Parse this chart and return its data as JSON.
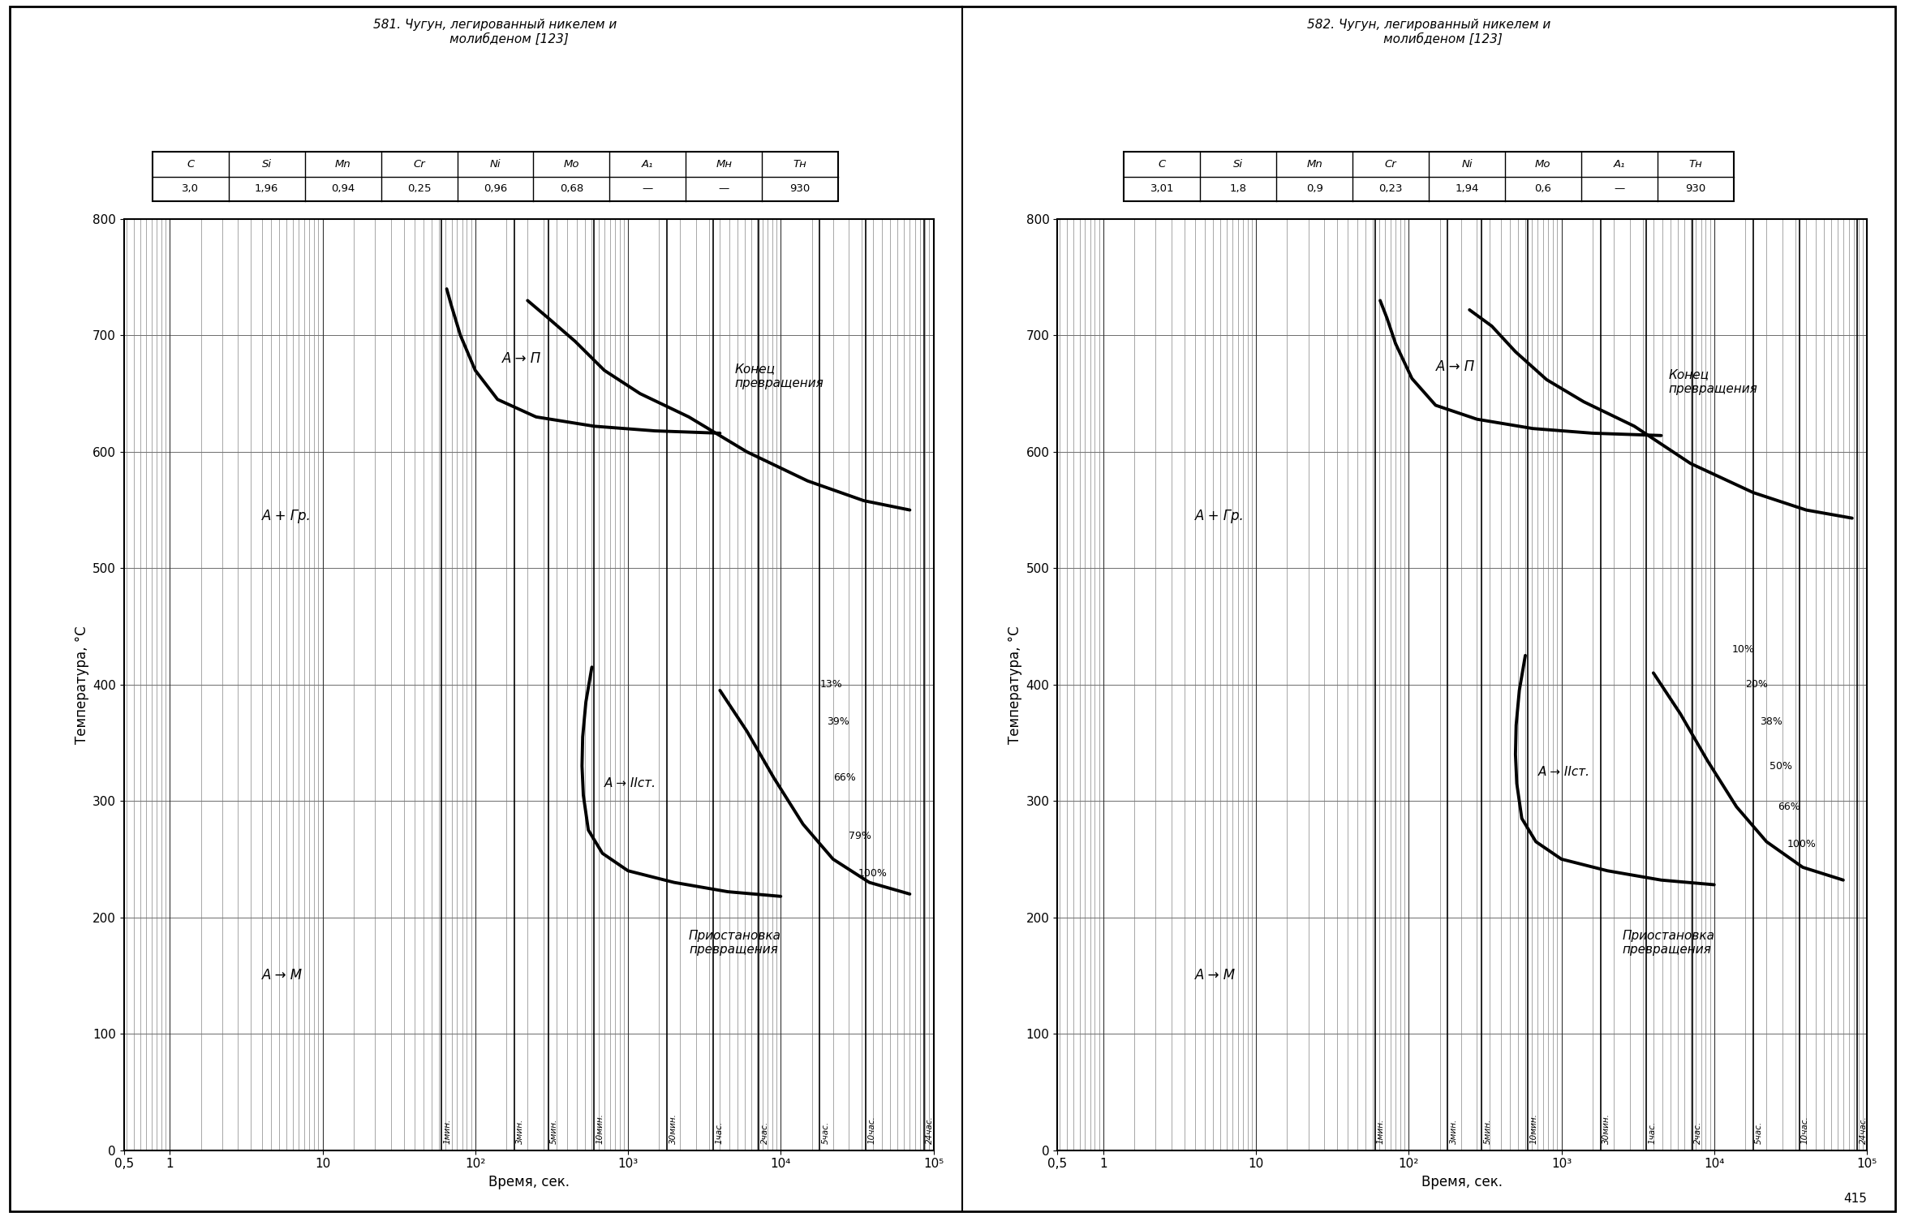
{
  "title1": "581. Чугун, легиробанный никелем и\n       молибденом [123]",
  "title2": "582. Чугун, легиробанный никелем и\n       молибденом [123]",
  "table1_headers": [
    "C",
    "Si",
    "Mn",
    "Cr",
    "Ni",
    "Mo",
    "A₁",
    "Mн",
    "Tн"
  ],
  "table1_values": [
    "3,0",
    "1,96",
    "0,94",
    "0,25",
    "0,96",
    "0,68",
    "—",
    "—",
    "930"
  ],
  "table2_headers": [
    "C",
    "Si",
    "Mn",
    "Cr",
    "Ni",
    "Mo",
    "A₁",
    "Tн"
  ],
  "table2_values": [
    "3,01",
    "1,8",
    "0,9",
    "0,23",
    "1,94",
    "0,6",
    "—",
    "930"
  ],
  "xlabel": "Время, сек.",
  "ylabel": "Температура, °C",
  "time_markers": [
    [
      60,
      "1мин."
    ],
    [
      180,
      "3мин."
    ],
    [
      300,
      "5мин."
    ],
    [
      600,
      "10мин."
    ],
    [
      1800,
      "30мин."
    ],
    [
      3600,
      "1час."
    ],
    [
      7200,
      "2час."
    ],
    [
      18000,
      "5час."
    ],
    [
      36000,
      "10час."
    ],
    [
      86400,
      "24час."
    ]
  ],
  "diag1": {
    "pearl_start_x": [
      65,
      70,
      80,
      100,
      140,
      250,
      600,
      1500,
      4000
    ],
    "pearl_start_y": [
      740,
      725,
      700,
      670,
      645,
      630,
      622,
      618,
      616
    ],
    "pearl_end_x": [
      220,
      300,
      450,
      700,
      1200,
      2500,
      6000,
      15000,
      35000,
      70000
    ],
    "pearl_end_y": [
      730,
      715,
      695,
      670,
      650,
      630,
      600,
      575,
      558,
      550
    ],
    "bain_start_x": [
      580,
      530,
      505,
      500,
      510,
      550,
      680,
      1000,
      2000,
      4500,
      10000
    ],
    "bain_start_y": [
      415,
      385,
      355,
      330,
      305,
      275,
      255,
      240,
      230,
      222,
      218
    ],
    "bain_end_x": [
      4000,
      6000,
      9000,
      14000,
      22000,
      38000,
      70000
    ],
    "bain_end_y": [
      395,
      360,
      320,
      280,
      250,
      230,
      220
    ],
    "label_agr": [
      4,
      545
    ],
    "label_ap": [
      150,
      680
    ],
    "label_aiist": [
      700,
      315
    ],
    "label_am": [
      4,
      150
    ],
    "label_konec": [
      5000,
      665
    ],
    "label_prio": [
      2500,
      178
    ],
    "pct_labels": [
      [
        18000,
        400,
        "13%"
      ],
      [
        20000,
        368,
        "39%"
      ],
      [
        22000,
        320,
        "66%"
      ],
      [
        28000,
        270,
        "79%"
      ],
      [
        32000,
        238,
        "100%"
      ]
    ]
  },
  "diag2": {
    "pearl_start_x": [
      65,
      72,
      82,
      105,
      150,
      280,
      650,
      1600,
      4500
    ],
    "pearl_start_y": [
      730,
      715,
      693,
      663,
      640,
      628,
      620,
      616,
      614
    ],
    "pearl_end_x": [
      250,
      350,
      500,
      800,
      1400,
      3000,
      7000,
      18000,
      40000,
      80000
    ],
    "pearl_end_y": [
      722,
      708,
      686,
      662,
      643,
      622,
      590,
      565,
      550,
      543
    ],
    "bain_start_x": [
      580,
      530,
      505,
      500,
      510,
      550,
      680,
      1000,
      2000,
      4500,
      10000
    ],
    "bain_start_y": [
      425,
      395,
      365,
      340,
      315,
      285,
      265,
      250,
      240,
      232,
      228
    ],
    "bain_end_x": [
      4000,
      6000,
      9000,
      14000,
      22000,
      38000,
      70000
    ],
    "bain_end_y": [
      410,
      375,
      335,
      295,
      265,
      243,
      232
    ],
    "label_agr": [
      4,
      545
    ],
    "label_ap": [
      150,
      673
    ],
    "label_aiist": [
      700,
      325
    ],
    "label_am": [
      4,
      150
    ],
    "label_konec": [
      5000,
      660
    ],
    "label_prio": [
      2500,
      178
    ],
    "pct_labels": [
      [
        13000,
        430,
        "10%"
      ],
      [
        16000,
        400,
        "20%"
      ],
      [
        20000,
        368,
        "38%"
      ],
      [
        23000,
        330,
        "50%"
      ],
      [
        26000,
        295,
        "66%"
      ],
      [
        30000,
        263,
        "100%"
      ]
    ]
  },
  "bg_color": "#ffffff",
  "line_color": "#000000",
  "grid_color": "#888888",
  "page_num": "415"
}
